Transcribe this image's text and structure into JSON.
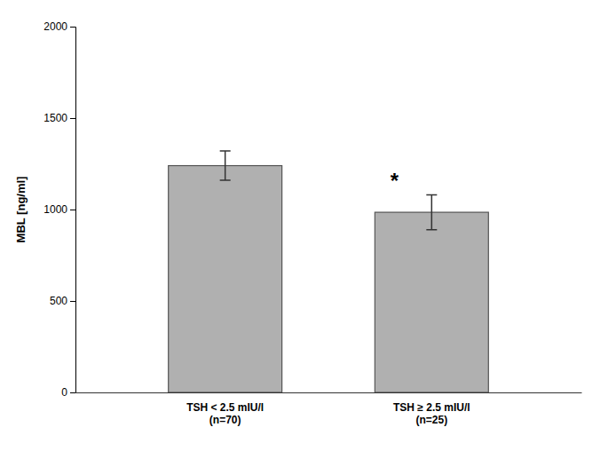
{
  "chart_data": {
    "type": "bar",
    "categories": [
      "TSH < 2.5 mIU/l\n(n=70)",
      "TSH ≥ 2.5 mIU/l\n(n=25)"
    ],
    "values": [
      1240,
      985
    ],
    "errors": [
      80,
      95
    ],
    "color": "#B0B0B0",
    "ylabel": "MBL [ng/ml]",
    "ylim": [
      0,
      2000
    ],
    "yticks": [
      0,
      500,
      1000,
      1500,
      2000
    ],
    "annotations": [
      {
        "text": "*",
        "category": "TSH ≥ 2.5 mIU/l\n(n=25)"
      }
    ],
    "grid": false
  }
}
